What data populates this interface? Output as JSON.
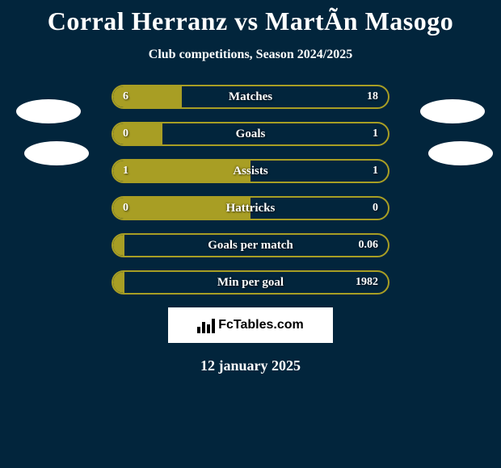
{
  "title": "Corral Herranz vs MartÃ­n Masogo",
  "subtitle": "Club competitions, Season 2024/2025",
  "date": "12 january 2025",
  "logo_text": "FcTables.com",
  "colors": {
    "background": "#02253c",
    "border": "#a89e24",
    "fill": "#a89e24",
    "text": "#ffffff"
  },
  "bars": [
    {
      "label": "Matches",
      "left": "6",
      "right": "18",
      "fill_pct": 25
    },
    {
      "label": "Goals",
      "left": "0",
      "right": "1",
      "fill_pct": 18
    },
    {
      "label": "Assists",
      "left": "1",
      "right": "1",
      "fill_pct": 50
    },
    {
      "label": "Hattricks",
      "left": "0",
      "right": "0",
      "fill_pct": 50
    },
    {
      "label": "Goals per match",
      "left": "",
      "right": "0.06",
      "fill_pct": 4
    },
    {
      "label": "Min per goal",
      "left": "",
      "right": "1982",
      "fill_pct": 4
    }
  ]
}
